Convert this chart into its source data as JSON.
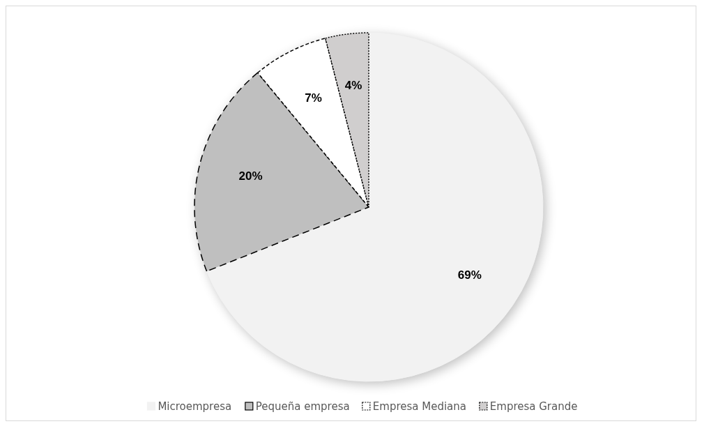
{
  "chart_data": {
    "type": "pie",
    "categories": [
      "Microempresa",
      "Pequeña empresa",
      "Empresa Mediana",
      "Empresa Grande"
    ],
    "values": [
      69,
      20,
      7,
      4
    ],
    "colors": [
      "#f2f2f2",
      "#bfbfbf",
      "#ffffff",
      "#d0cece"
    ],
    "value_labels": [
      "69%",
      "20%",
      "7%",
      "4%"
    ],
    "legend": "bottom"
  }
}
